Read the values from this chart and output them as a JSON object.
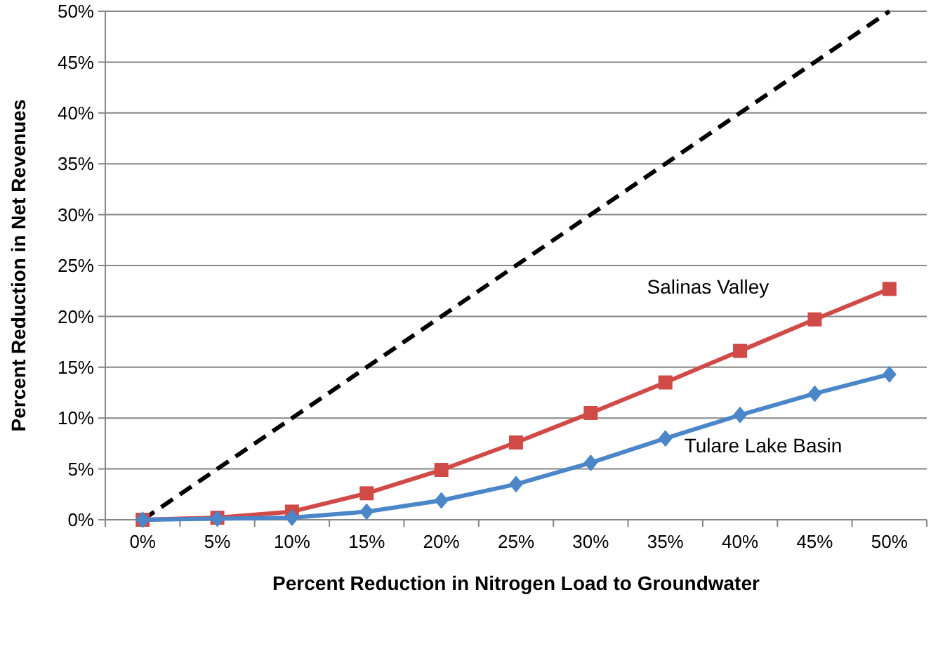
{
  "chart_data": {
    "type": "line",
    "xlabel": "Percent Reduction in Nitrogen Load to Groundwater",
    "ylabel": "Percent Reduction in Net Revenues",
    "categories": [
      "0%",
      "5%",
      "10%",
      "15%",
      "20%",
      "25%",
      "30%",
      "35%",
      "40%",
      "45%",
      "50%"
    ],
    "ylim": [
      0,
      50
    ],
    "yticks": [
      {
        "value": 0,
        "label": "0%"
      },
      {
        "value": 5,
        "label": "5%"
      },
      {
        "value": 10,
        "label": "10%"
      },
      {
        "value": 15,
        "label": "15%"
      },
      {
        "value": 20,
        "label": "20%"
      },
      {
        "value": 25,
        "label": "25%"
      },
      {
        "value": 30,
        "label": "30%"
      },
      {
        "value": 35,
        "label": "35%"
      },
      {
        "value": 40,
        "label": "40%"
      },
      {
        "value": 45,
        "label": "45%"
      },
      {
        "value": 50,
        "label": "50%"
      }
    ],
    "grid": "y",
    "series": [
      {
        "color": "#000000",
        "line_style": "dashed",
        "marker": "none",
        "values": [
          0,
          5,
          10,
          15,
          20,
          25,
          30,
          35,
          40,
          45,
          50
        ]
      },
      {
        "name": "Salinas Valley",
        "color": "#d04b48",
        "line_style": "solid",
        "marker": "square",
        "values": [
          0,
          0.2,
          0.8,
          2.6,
          4.9,
          7.6,
          10.5,
          13.5,
          16.6,
          19.7,
          22.7
        ]
      },
      {
        "name": "Tulare Lake Basin",
        "color": "#4a86c8",
        "line_style": "solid",
        "marker": "diamond",
        "values": [
          0,
          0.1,
          0.2,
          0.8,
          1.9,
          3.5,
          5.6,
          8.0,
          10.3,
          12.4,
          14.3
        ]
      }
    ]
  }
}
